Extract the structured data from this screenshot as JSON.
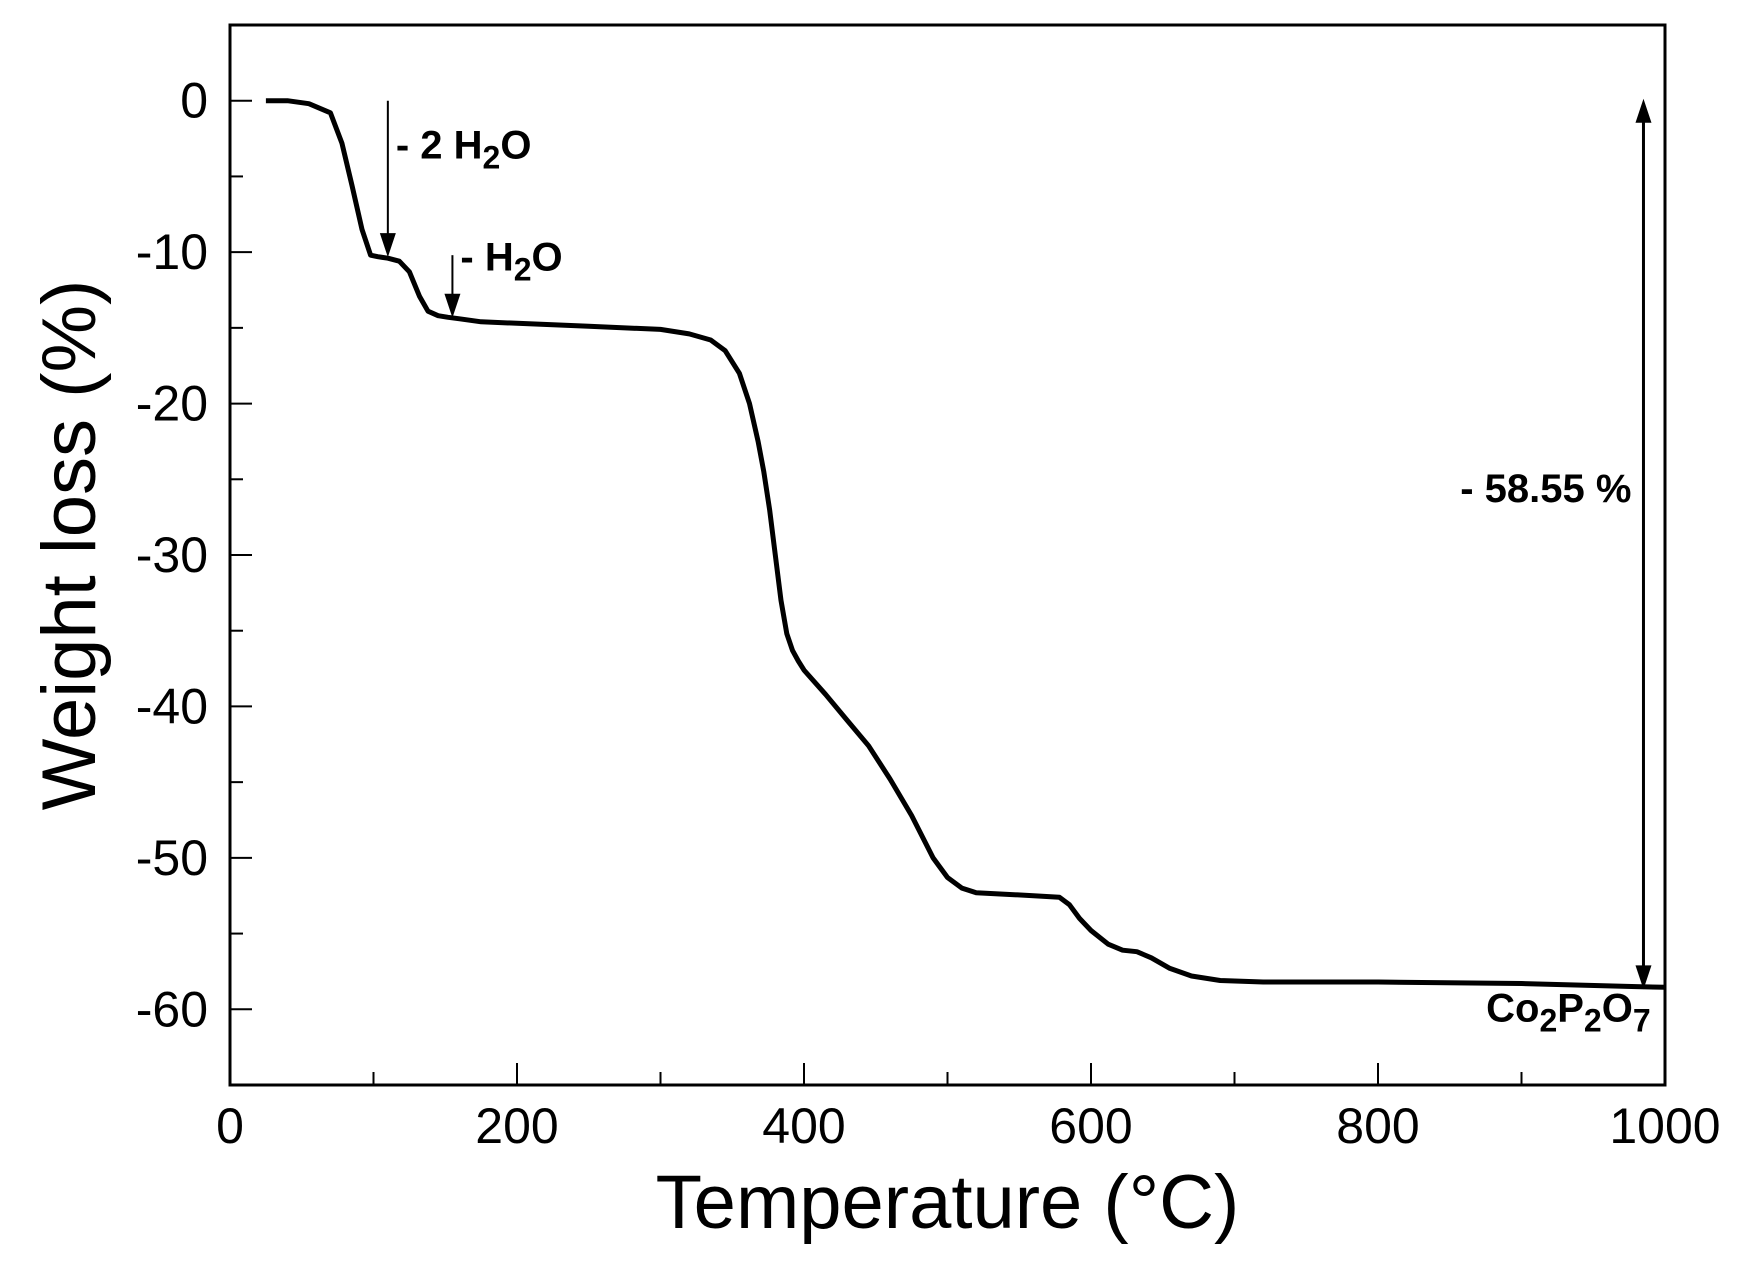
{
  "chart_data": {
    "type": "line",
    "title": "",
    "xlabel": "Temperature (°C)",
    "ylabel": "Weight loss (%)",
    "xlim": [
      0,
      1000
    ],
    "ylim": [
      -65,
      5
    ],
    "xticks": [
      0,
      200,
      400,
      600,
      800,
      1000
    ],
    "xtick_labels": [
      "0",
      "200",
      "400",
      "600",
      "800",
      "1000"
    ],
    "yticks": [
      0,
      -10,
      -20,
      -30,
      -40,
      -50,
      -60
    ],
    "ytick_labels": [
      "0",
      "-10",
      "-20",
      "-30",
      "-40",
      "-50",
      "-60"
    ],
    "x_minor_step": 100,
    "y_minor_step": 5,
    "grid": false,
    "legend": "none",
    "line_color": "#000000",
    "series": [
      {
        "x": [
          25,
          40,
          55,
          70,
          78,
          85,
          92,
          98,
          103,
          110,
          118,
          125,
          132,
          138,
          145,
          152,
          160,
          175,
          200,
          250,
          300,
          320,
          335,
          345,
          355,
          362,
          368,
          372,
          376,
          380,
          384,
          388,
          392,
          396,
          400,
          415,
          430,
          445,
          460,
          475,
          490,
          500,
          510,
          520,
          540,
          560,
          578,
          585,
          592,
          600,
          612,
          622,
          632,
          642,
          655,
          670,
          690,
          720,
          800,
          900,
          980,
          1000
        ],
        "y": [
          0,
          0,
          -0.2,
          -0.8,
          -2.8,
          -5.6,
          -8.5,
          -10.2,
          -10.3,
          -10.4,
          -10.6,
          -11.3,
          -12.9,
          -13.9,
          -14.2,
          -14.3,
          -14.4,
          -14.6,
          -14.7,
          -14.9,
          -15.1,
          -15.4,
          -15.8,
          -16.5,
          -18.0,
          -20.0,
          -22.5,
          -24.5,
          -27.0,
          -30.0,
          -33.0,
          -35.2,
          -36.3,
          -37.0,
          -37.6,
          -39.2,
          -40.9,
          -42.6,
          -44.8,
          -47.2,
          -50.0,
          -51.3,
          -52.0,
          -52.3,
          -52.4,
          -52.5,
          -52.6,
          -53.1,
          -54.0,
          -54.8,
          -55.7,
          -56.1,
          -56.2,
          -56.6,
          -57.3,
          -57.8,
          -58.1,
          -58.2,
          -58.2,
          -58.3,
          -58.5,
          -58.55
        ]
      }
    ],
    "annotations": [
      {
        "text": "- 2 H",
        "sub": "2",
        "text_after": "O",
        "arrow_x": 110,
        "arrow_from_y": 0,
        "arrow_to_y": -10.2
      },
      {
        "text": "- H",
        "sub": "2",
        "text_after": "O",
        "arrow_x": 155,
        "arrow_from_y": -10.2,
        "arrow_to_y": -14.2
      },
      {
        "text": "- 58.55 %",
        "arrow_x": 985,
        "arrow_from_y": 0,
        "arrow_to_y": -58.55
      },
      {
        "text": "Co",
        "sub": "2",
        "text_after": "P",
        "sub2": "2",
        "text_after2": "O",
        "sub3": "7",
        "x": 990,
        "y": -60.8
      }
    ]
  }
}
